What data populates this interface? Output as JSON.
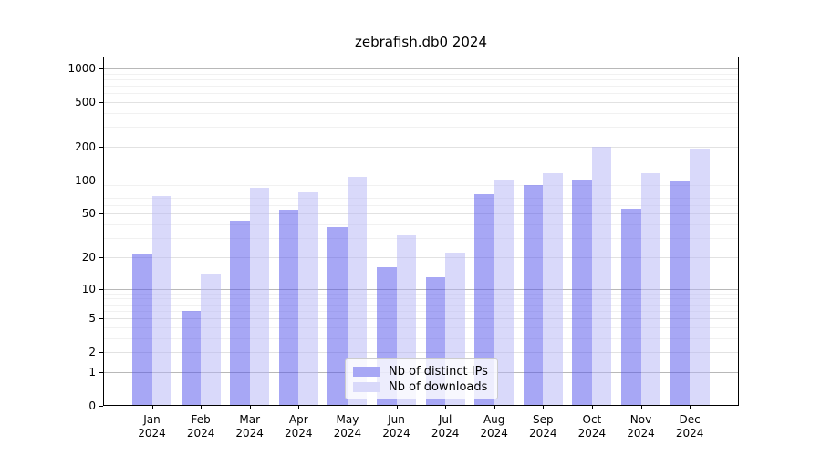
{
  "chart_data": {
    "type": "bar",
    "title": "zebrafish.db0 2024",
    "months": [
      "Jan",
      "Feb",
      "Mar",
      "Apr",
      "May",
      "Jun",
      "Jul",
      "Aug",
      "Sep",
      "Oct",
      "Nov",
      "Dec"
    ],
    "year": "2024",
    "series": [
      {
        "name": "Nb of distinct IPs",
        "values": [
          21,
          6,
          43,
          54,
          38,
          16,
          13,
          75,
          90,
          101,
          56,
          98
        ],
        "bar_color": "rgba(80,80,235,0.5)",
        "swatch_color": "#a7a7f5"
      },
      {
        "name": "Nb of downloads",
        "values": [
          72,
          14,
          85,
          80,
          108,
          32,
          22,
          101,
          115,
          200,
          115,
          193
        ],
        "bar_color": "rgba(179,179,245,0.5)",
        "swatch_color": "#d9d9fa"
      }
    ],
    "yticks": [
      0,
      1,
      2,
      5,
      10,
      20,
      50,
      100,
      200,
      500,
      1000
    ],
    "ylim": [
      0,
      1300
    ],
    "scale": "log10(v+1)",
    "grid": true,
    "legend_position": "lower center"
  },
  "colors": {
    "grid_major": "#b8b8b8",
    "grid_labeled": "#e2e2e2",
    "grid_minor": "#f1f1f1",
    "axis": "#000000",
    "background": "#ffffff"
  }
}
